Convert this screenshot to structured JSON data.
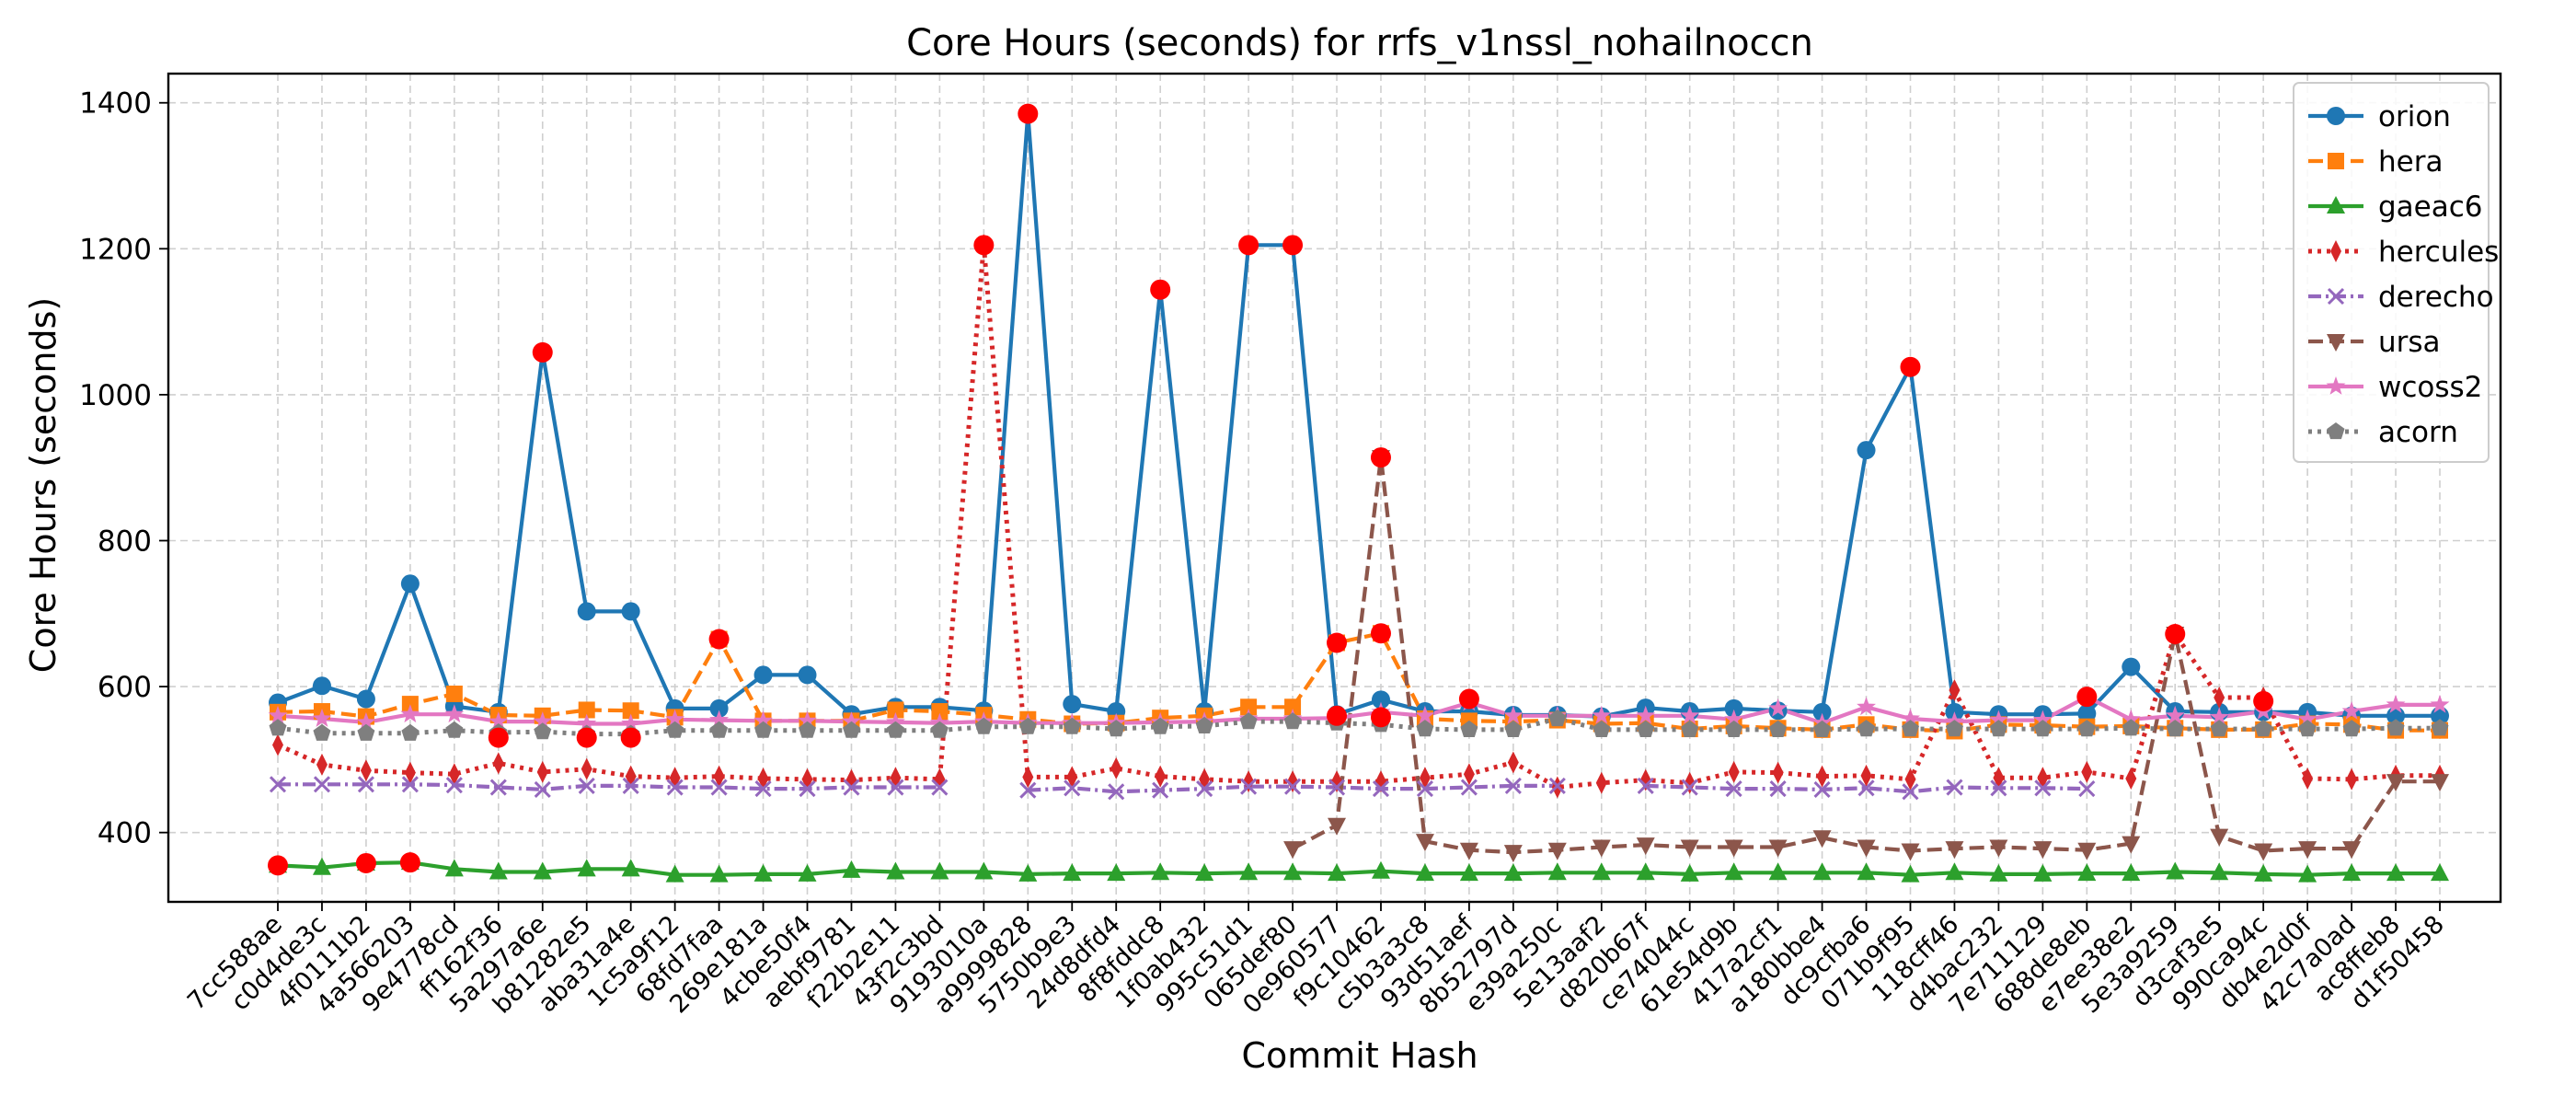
{
  "chart_data": {
    "type": "line",
    "title": "Core Hours (seconds) for rrfs_v1nssl_nohailnoccn",
    "xlabel": "Commit Hash",
    "ylabel": "Core Hours (seconds)",
    "ylim": [
      305,
      1440
    ],
    "yticks": [
      400,
      600,
      800,
      1000,
      1200,
      1400
    ],
    "grid": true,
    "legend_position": "top-right",
    "categories": [
      "7cc588ae",
      "c0d4de3c",
      "4f0111b2",
      "4a566203",
      "9e4778cd",
      "ff162f36",
      "5a297a6e",
      "b81282e5",
      "aba31a4e",
      "1c5a9f12",
      "68fd7faa",
      "269e181a",
      "4cbe50f4",
      "aebf9781",
      "f22b2e11",
      "43f2c3bd",
      "9193010a",
      "a9999828",
      "5750b9e3",
      "24d8dfd4",
      "8f8fddc8",
      "1f0ab432",
      "995c51d1",
      "065def80",
      "0e960577",
      "f9c10462",
      "c5b3a3c8",
      "93d51aef",
      "8b52797d",
      "e39a250c",
      "5e13aaf2",
      "d820b67f",
      "ce74044c",
      "61e54d9b",
      "417a2cf1",
      "a180bbe4",
      "dc9cfba6",
      "071b9f95",
      "118cff46",
      "d4bac232",
      "7e711129",
      "688de8eb",
      "e7ee38e2",
      "5e3a9259",
      "d3caf3e5",
      "990ca94c",
      "db4e2d0f",
      "42c7a0ad",
      "ac8ffeb8",
      "d1f50458"
    ],
    "series": [
      {
        "name": "orion",
        "color": "#1f77b4",
        "marker": "circle",
        "dash": "solid",
        "values": [
          578,
          601,
          583,
          741,
          573,
          565,
          1058,
          703,
          703,
          570,
          570,
          616,
          616,
          562,
          572,
          572,
          567,
          1385,
          576,
          566,
          1144,
          566,
          1205,
          1205,
          562,
          582,
          566,
          566,
          561,
          561,
          559,
          571,
          566,
          570,
          567,
          565,
          924,
          1038,
          565,
          562,
          562,
          563,
          627,
          566,
          565,
          565,
          565,
          560,
          560,
          560
        ]
      },
      {
        "name": "hera",
        "color": "#ff7f0e",
        "marker": "square",
        "dash": "dashed",
        "values": [
          565,
          566,
          559,
          576,
          590,
          561,
          560,
          568,
          567,
          558,
          665,
          553,
          553,
          553,
          568,
          566,
          561,
          555,
          549,
          550,
          557,
          560,
          572,
          572,
          660,
          673,
          556,
          553,
          552,
          554,
          549,
          550,
          542,
          546,
          543,
          541,
          548,
          541,
          539,
          548,
          547,
          545,
          546,
          543,
          541,
          541,
          549,
          548,
          540,
          540
        ]
      },
      {
        "name": "gaeac6",
        "color": "#2ca02c",
        "marker": "triangle-up",
        "dash": "solid",
        "values": [
          355,
          352,
          358,
          359,
          350,
          346,
          346,
          350,
          350,
          342,
          342,
          343,
          343,
          348,
          346,
          346,
          346,
          343,
          344,
          344,
          345,
          344,
          345,
          345,
          344,
          347,
          344,
          344,
          344,
          345,
          345,
          345,
          343,
          345,
          345,
          345,
          345,
          342,
          345,
          343,
          343,
          344,
          344,
          346,
          345,
          343,
          342,
          344,
          344,
          344
        ]
      },
      {
        "name": "hercules",
        "color": "#d62728",
        "marker": "thin-diamond",
        "dash": "dotted",
        "values": [
          520,
          493,
          485,
          482,
          480,
          495,
          483,
          487,
          477,
          475,
          477,
          474,
          473,
          472,
          475,
          473,
          1205,
          476,
          476,
          488,
          477,
          473,
          470,
          470,
          470,
          470,
          475,
          480,
          496,
          462,
          468,
          472,
          468,
          483,
          482,
          477,
          478,
          473,
          595,
          475,
          475,
          483,
          474,
          672,
          585,
          585,
          474,
          473,
          478,
          478
        ]
      },
      {
        "name": "derecho",
        "color": "#9467bd",
        "marker": "x",
        "dash": "dashdot",
        "values": [
          466,
          466,
          466,
          466,
          465,
          462,
          459,
          464,
          464,
          462,
          462,
          460,
          460,
          462,
          462,
          462,
          null,
          458,
          461,
          456,
          458,
          460,
          463,
          463,
          462,
          460,
          460,
          462,
          464,
          464,
          null,
          464,
          462,
          460,
          460,
          459,
          461,
          456,
          462,
          461,
          461,
          460,
          null,
          null,
          null,
          null,
          null,
          null,
          null,
          null
        ]
      },
      {
        "name": "ursa",
        "color": "#8c564b",
        "marker": "triangle-down",
        "dash": "dashed",
        "values": [
          null,
          null,
          null,
          null,
          null,
          null,
          null,
          null,
          null,
          null,
          null,
          null,
          null,
          null,
          null,
          null,
          null,
          null,
          null,
          null,
          null,
          null,
          null,
          378,
          410,
          914,
          388,
          376,
          373,
          376,
          380,
          383,
          380,
          380,
          380,
          393,
          380,
          375,
          378,
          380,
          378,
          376,
          385,
          672,
          395,
          375,
          378,
          378,
          470,
          470
        ]
      },
      {
        "name": "wcoss2",
        "color": "#e377c2",
        "marker": "star",
        "dash": "solid",
        "values": [
          560,
          556,
          551,
          562,
          562,
          552,
          552,
          549,
          549,
          555,
          554,
          553,
          553,
          552,
          551,
          550,
          552,
          550,
          550,
          550,
          551,
          552,
          556,
          556,
          557,
          565,
          560,
          578,
          560,
          560,
          560,
          560,
          560,
          555,
          570,
          550,
          572,
          556,
          552,
          554,
          554,
          586,
          555,
          560,
          558,
          566,
          555,
          566,
          575,
          575
        ]
      },
      {
        "name": "acorn",
        "color": "#7f7f7f",
        "marker": "pentagon",
        "dash": "dotted",
        "values": [
          543,
          536,
          536,
          536,
          540,
          537,
          538,
          535,
          535,
          540,
          540,
          540,
          540,
          540,
          540,
          540,
          545,
          545,
          545,
          542,
          545,
          546,
          552,
          552,
          550,
          548,
          542,
          541,
          541,
          556,
          541,
          541,
          541,
          541,
          541,
          541,
          542,
          542,
          542,
          542,
          542,
          542,
          543,
          542,
          542,
          542,
          542,
          542,
          543,
          543
        ]
      }
    ],
    "highlights": [
      {
        "index": 0,
        "value": 355
      },
      {
        "index": 2,
        "value": 358
      },
      {
        "index": 3,
        "value": 359
      },
      {
        "index": 5,
        "value": 530
      },
      {
        "index": 6,
        "value": 1058
      },
      {
        "index": 7,
        "value": 530
      },
      {
        "index": 8,
        "value": 530
      },
      {
        "index": 10,
        "value": 665
      },
      {
        "index": 16,
        "value": 1205
      },
      {
        "index": 17,
        "value": 1385
      },
      {
        "index": 20,
        "value": 1144
      },
      {
        "index": 22,
        "value": 1205
      },
      {
        "index": 23,
        "value": 1205
      },
      {
        "index": 24,
        "value": 660
      },
      {
        "index": 24,
        "value": 560
      },
      {
        "index": 25,
        "value": 673
      },
      {
        "index": 25,
        "value": 914
      },
      {
        "index": 25,
        "value": 558
      },
      {
        "index": 27,
        "value": 583
      },
      {
        "index": 37,
        "value": 1038
      },
      {
        "index": 41,
        "value": 586
      },
      {
        "index": 43,
        "value": 672
      },
      {
        "index": 45,
        "value": 580
      }
    ],
    "highlight_color": "#ff0000"
  }
}
